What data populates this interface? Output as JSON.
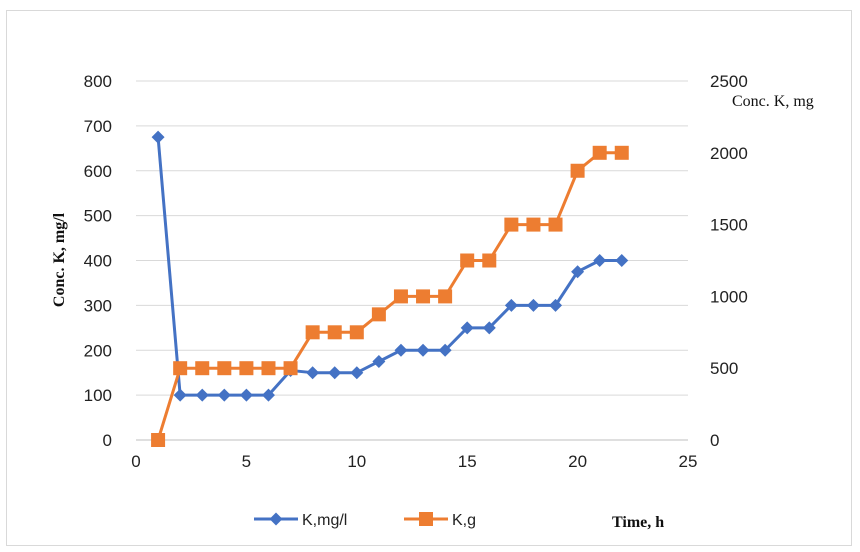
{
  "chart_data": {
    "type": "line",
    "xlabel": "Time, h",
    "ylabel": "Conc.  K, mg/l",
    "y2label": "Conc. K, mg",
    "xlim": [
      0,
      25
    ],
    "ylim": [
      0,
      800
    ],
    "y2lim": [
      0,
      2500
    ],
    "x_ticks": [
      "0",
      "5",
      "10",
      "15",
      "20",
      "25"
    ],
    "y_ticks": [
      "0",
      "100",
      "200",
      "300",
      "400",
      "500",
      "600",
      "700",
      "800"
    ],
    "y2_ticks": [
      "0",
      "500",
      "1000",
      "1500",
      "2000",
      "2500"
    ],
    "grid": "horizontal",
    "legend_position": "bottom",
    "series": [
      {
        "name": "K,mg/l",
        "axis": "left",
        "color": "#4472C4",
        "marker": "diamond",
        "x": [
          1,
          2,
          3,
          4,
          5,
          6,
          7,
          8,
          9,
          10,
          11,
          12,
          13,
          14,
          15,
          16,
          17,
          18,
          19,
          20,
          21,
          22
        ],
        "values": [
          675,
          100,
          100,
          100,
          100,
          100,
          155,
          150,
          150,
          150,
          175,
          200,
          200,
          200,
          250,
          250,
          300,
          300,
          300,
          375,
          400,
          400
        ]
      },
      {
        "name": "K,g",
        "axis": "right",
        "color": "#ED7D31",
        "marker": "square",
        "x": [
          1,
          2,
          3,
          4,
          5,
          6,
          7,
          8,
          9,
          10,
          11,
          12,
          13,
          14,
          15,
          16,
          17,
          18,
          19,
          20,
          21,
          22
        ],
        "values": [
          0,
          500,
          500,
          500,
          500,
          500,
          500,
          750,
          750,
          750,
          875,
          1000,
          1000,
          1000,
          1250,
          1250,
          1500,
          1500,
          1500,
          1875,
          2000,
          2000
        ]
      }
    ]
  }
}
